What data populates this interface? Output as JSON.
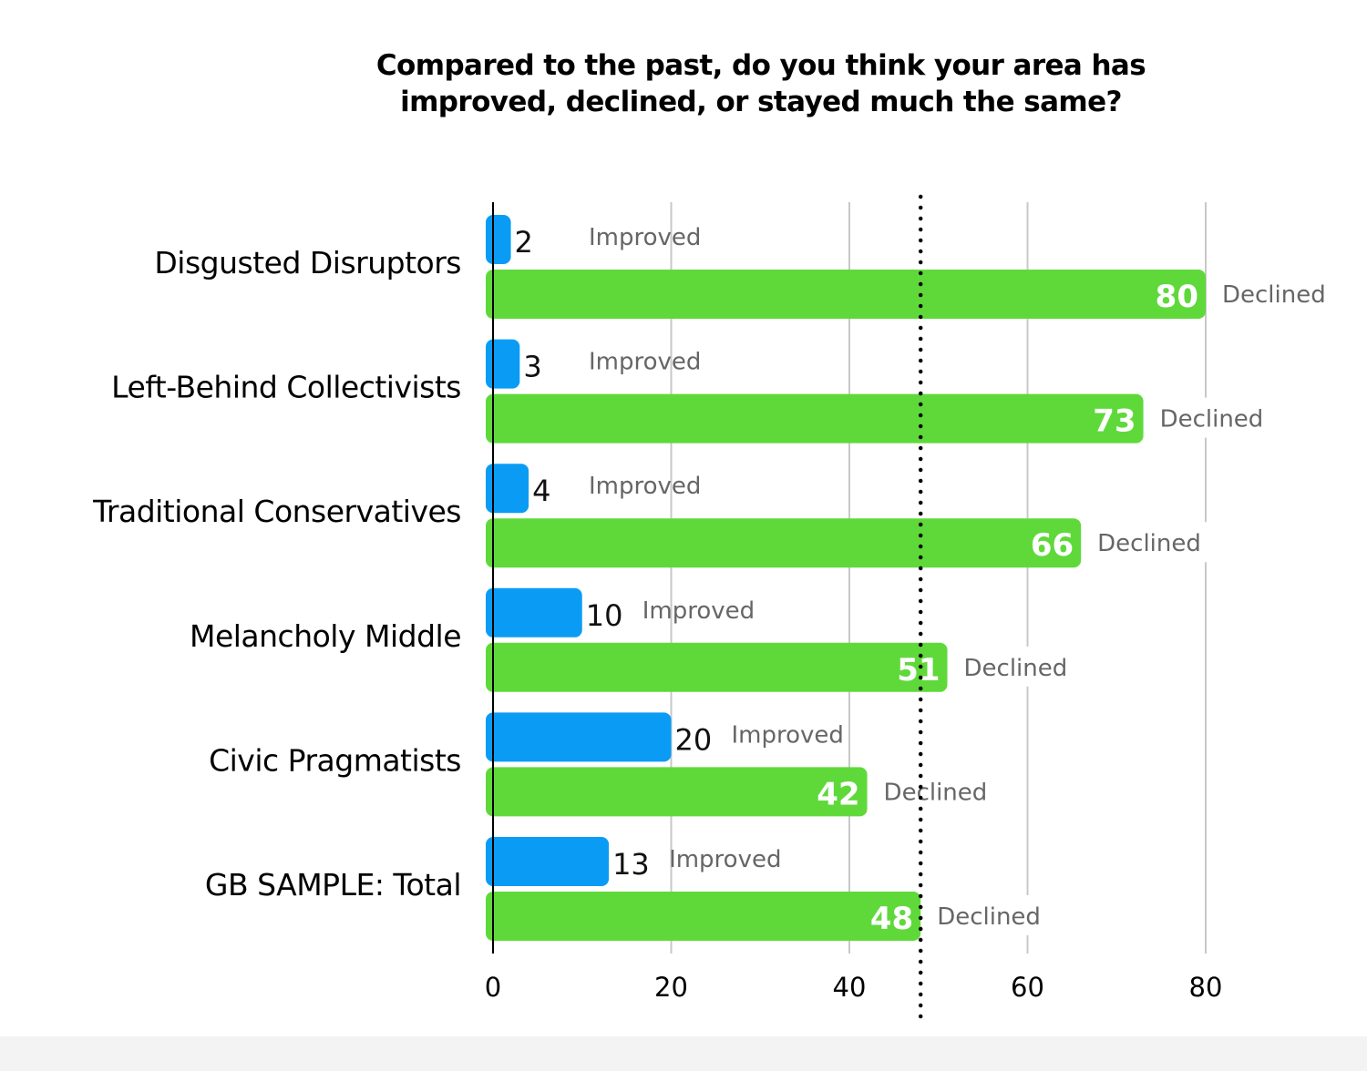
{
  "chart_data": {
    "type": "bar",
    "orientation": "horizontal",
    "title_lines": [
      "Compared to the past, do you think your area has",
      "improved, declined, or stayed much the same?"
    ],
    "categories": [
      "Disgusted Disruptors",
      "Left-Behind Collectivists",
      "Traditional Conservatives",
      "Melancholy Middle",
      "Civic Pragmatists",
      "GB SAMPLE: Total"
    ],
    "series": [
      {
        "name": "Improved",
        "color": "#0a9cf5",
        "values": [
          2,
          3,
          4,
          10,
          20,
          13
        ]
      },
      {
        "name": "Declined",
        "color": "#5fd93a",
        "values": [
          80,
          73,
          66,
          51,
          42,
          48
        ]
      }
    ],
    "xlim": [
      0,
      80
    ],
    "xticks": [
      0,
      20,
      40,
      60,
      80
    ],
    "reference_line": {
      "value": 48,
      "style": "dotted"
    },
    "grid": true
  }
}
